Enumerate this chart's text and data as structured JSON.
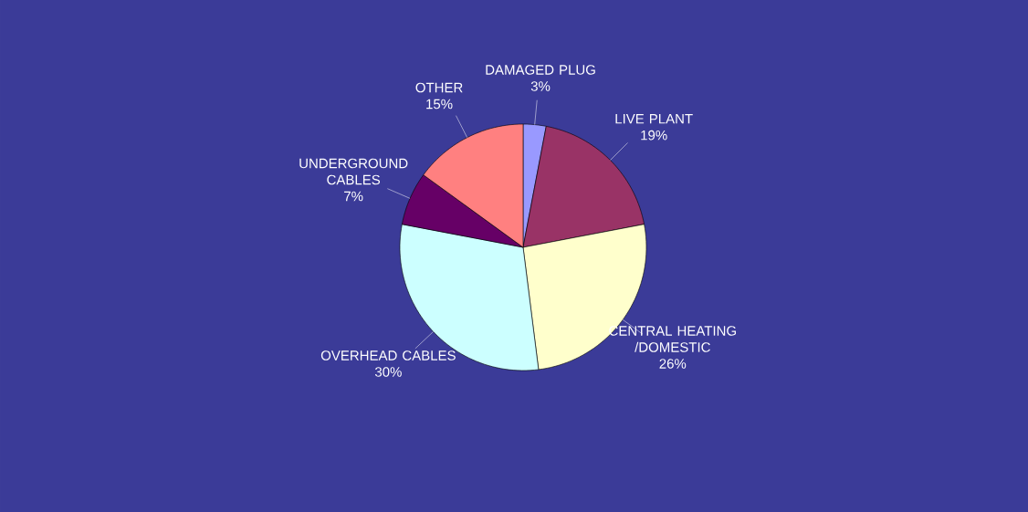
{
  "chart_data": {
    "type": "pie",
    "categories": [
      "DAMAGED PLUG",
      "LIVE PLANT",
      "CENTRAL HEATING /DOMESTIC",
      "OVERHEAD CABLES",
      "UNDERGROUND CABLES",
      "OTHER"
    ],
    "values": [
      3,
      19,
      26,
      30,
      7,
      15
    ],
    "value_labels": [
      "3%",
      "19%",
      "26%",
      "30%",
      "7%",
      "15%"
    ],
    "colors": [
      "#9999ff",
      "#993366",
      "#ffffcc",
      "#ccffff",
      "#660066",
      "#ff8080"
    ]
  }
}
